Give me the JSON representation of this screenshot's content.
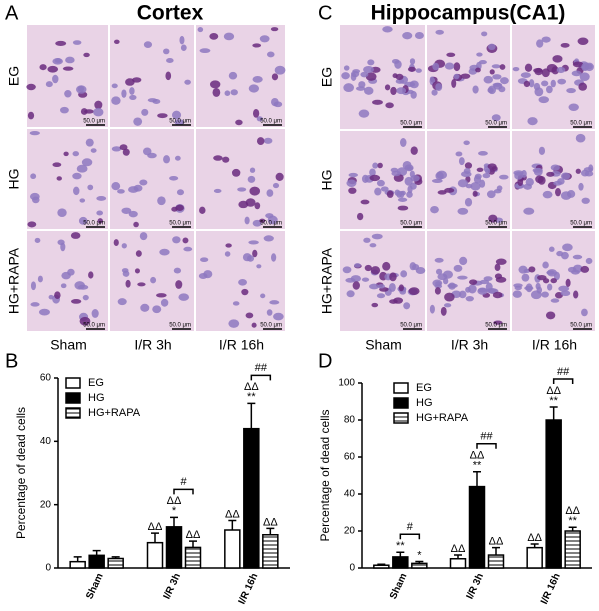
{
  "figure": {
    "panels": [
      {
        "letter": "A",
        "title": "Cortex",
        "rows": [
          "EG",
          "HG",
          "HG+RAPA"
        ],
        "columns": [
          "Sham",
          "I/R 3h",
          "I/R 16h"
        ]
      },
      {
        "letter": "C",
        "title": "Hippocampus(CA1)",
        "rows": [
          "EG",
          "HG",
          "HG+RAPA"
        ],
        "columns": [
          "Sham",
          "I/R 3h",
          "I/R 16h"
        ]
      }
    ],
    "scale_bar": "50.0 μm"
  },
  "chart_data": [
    {
      "type": "bar",
      "letter": "B",
      "y_label": "Percentage of dead cells",
      "categories": [
        "Sham",
        "I/R 3h",
        "I/R 16h"
      ],
      "ylim": [
        0,
        60
      ],
      "yticks": [
        0,
        20,
        40,
        60
      ],
      "legend": "upper-left",
      "series": [
        {
          "name": "EG",
          "color": "#ffffff",
          "values": [
            2,
            8,
            12
          ],
          "errors": [
            1.5,
            3,
            3
          ]
        },
        {
          "name": "HG",
          "color": "#000000",
          "values": [
            4,
            13,
            44
          ],
          "errors": [
            1.5,
            3,
            8
          ]
        },
        {
          "name": "HG+RAPA",
          "color": "#ffffff",
          "hatch": "horizontal",
          "values": [
            3,
            6.5,
            10.5
          ],
          "errors": [
            0.5,
            2,
            2
          ]
        }
      ],
      "annotations": [
        {
          "category": "I/R 3h",
          "series": "EG",
          "lines": [
            "ΔΔ"
          ]
        },
        {
          "category": "I/R 3h",
          "series": "HG",
          "lines": [
            "ΔΔ",
            "*"
          ]
        },
        {
          "category": "I/R 3h",
          "series": "HG+RAPA",
          "lines": [
            "ΔΔ"
          ]
        },
        {
          "category": "I/R 16h",
          "series": "EG",
          "lines": [
            "ΔΔ"
          ]
        },
        {
          "category": "I/R 16h",
          "series": "HG",
          "lines": [
            "ΔΔ",
            "**"
          ]
        },
        {
          "category": "I/R 16h",
          "series": "HG+RAPA",
          "lines": [
            "ΔΔ"
          ]
        }
      ],
      "brackets": [
        {
          "category": "I/R 3h",
          "from": "HG",
          "to": "HG+RAPA",
          "text": "#"
        },
        {
          "category": "I/R 16h",
          "from": "HG",
          "to": "HG+RAPA",
          "text": "##"
        }
      ]
    },
    {
      "type": "bar",
      "letter": "D",
      "y_label": "Percentage of dead cells",
      "categories": [
        "Sham",
        "I/R 3h",
        "I/R 16h"
      ],
      "ylim": [
        0,
        100
      ],
      "yticks": [
        0,
        20,
        40,
        60,
        80,
        100
      ],
      "legend": "upper-left",
      "series": [
        {
          "name": "EG",
          "color": "#ffffff",
          "values": [
            1.5,
            5,
            11
          ],
          "errors": [
            0.5,
            2,
            2
          ]
        },
        {
          "name": "HG",
          "color": "#000000",
          "values": [
            6,
            44,
            80
          ],
          "errors": [
            2.5,
            8,
            7
          ]
        },
        {
          "name": "HG+RAPA",
          "color": "#ffffff",
          "hatch": "horizontal",
          "values": [
            2.5,
            7,
            20
          ],
          "errors": [
            1,
            4,
            2
          ]
        }
      ],
      "annotations": [
        {
          "category": "Sham",
          "series": "HG",
          "lines": [
            "**"
          ]
        },
        {
          "category": "Sham",
          "series": "HG+RAPA",
          "lines": [
            "*"
          ]
        },
        {
          "category": "I/R 3h",
          "series": "EG",
          "lines": [
            "ΔΔ"
          ]
        },
        {
          "category": "I/R 3h",
          "series": "HG",
          "lines": [
            "ΔΔ",
            "**"
          ]
        },
        {
          "category": "I/R 3h",
          "series": "HG+RAPA",
          "lines": [
            "ΔΔ"
          ]
        },
        {
          "category": "I/R 16h",
          "series": "EG",
          "lines": [
            "ΔΔ"
          ]
        },
        {
          "category": "I/R 16h",
          "series": "HG",
          "lines": [
            "ΔΔ",
            "**"
          ]
        },
        {
          "category": "I/R 16h",
          "series": "HG+RAPA",
          "lines": [
            "ΔΔ",
            "**"
          ]
        }
      ],
      "brackets": [
        {
          "category": "Sham",
          "from": "HG",
          "to": "HG+RAPA",
          "text": "#"
        },
        {
          "category": "I/R 3h",
          "from": "HG",
          "to": "HG+RAPA",
          "text": "##"
        },
        {
          "category": "I/R 16h",
          "from": "HG",
          "to": "HG+RAPA",
          "text": "##"
        }
      ]
    }
  ]
}
